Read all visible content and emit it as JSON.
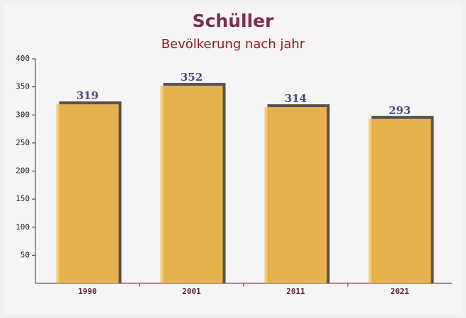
{
  "chart_data": {
    "type": "bar",
    "title": "Schüller",
    "subtitle": "Bevölkerung nach jahr",
    "categories": [
      "1990",
      "2001",
      "2011",
      "2021"
    ],
    "values": [
      319,
      352,
      314,
      293
    ],
    "color": "#ffc34d",
    "ylim": [
      0,
      400
    ],
    "yticks": [
      50,
      100,
      150,
      200,
      250,
      300,
      350,
      400
    ],
    "grid": false
  }
}
